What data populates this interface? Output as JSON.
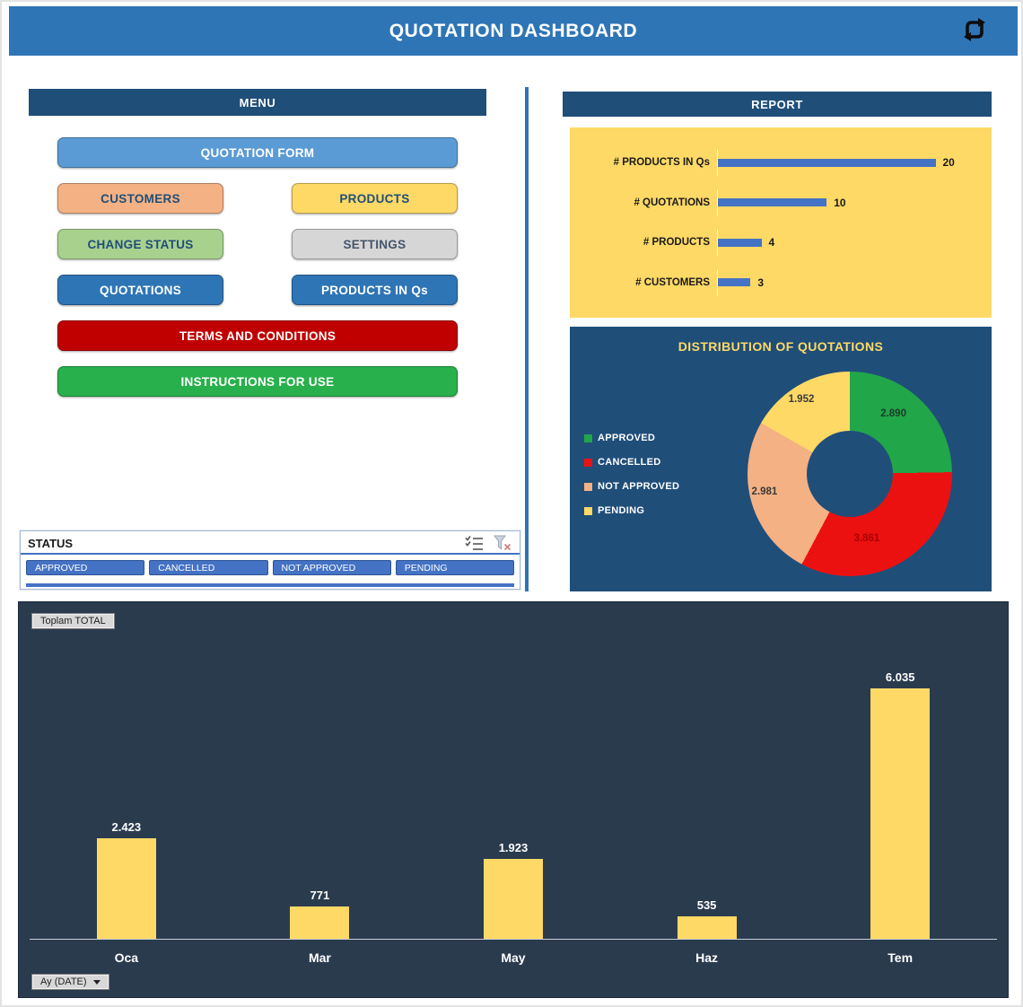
{
  "header": {
    "title": "QUOTATION DASHBOARD"
  },
  "menu": {
    "title": "MENU",
    "buttons": [
      {
        "label": "QUOTATION FORM",
        "bg": "#5B9BD5",
        "fg": "#FFFFFF"
      },
      {
        "label": "CUSTOMERS",
        "bg": "#F4B183",
        "fg": "#1F4E79"
      },
      {
        "label": "PRODUCTS",
        "bg": "#FFD966",
        "fg": "#1F4E79"
      },
      {
        "label": "CHANGE STATUS",
        "bg": "#A9D18E",
        "fg": "#1F4E79"
      },
      {
        "label": "SETTINGS",
        "bg": "#D6D6D6",
        "fg": "#44546A"
      },
      {
        "label": "QUOTATIONS",
        "bg": "#2E75B6",
        "fg": "#FFFFFF"
      },
      {
        "label": "PRODUCTS IN Qs",
        "bg": "#2E75B6",
        "fg": "#FFFFFF"
      },
      {
        "label": "TERMS AND CONDITIONS",
        "bg": "#C00000",
        "fg": "#FFFFFF"
      },
      {
        "label": "INSTRUCTIONS FOR USE",
        "bg": "#28B04C",
        "fg": "#FFFFFF"
      }
    ]
  },
  "status_slicer": {
    "title": "STATUS",
    "items": [
      "APPROVED",
      "CANCELLED",
      "NOT APPROVED",
      "PENDING"
    ],
    "icons": [
      "multi-select",
      "clear-filter"
    ]
  },
  "report": {
    "title": "REPORT"
  },
  "chart_data": [
    {
      "id": "report-counts",
      "type": "bar",
      "orientation": "horizontal",
      "categories": [
        "# PRODUCTS IN Qs",
        "# QUOTATIONS",
        "# PRODUCTS",
        "# CUSTOMERS"
      ],
      "values": [
        20,
        10,
        4,
        3
      ],
      "xlim": [
        0,
        24
      ],
      "bar_color": "#4472C4",
      "background": "#FFD966",
      "grid": false,
      "legend": false
    },
    {
      "id": "distribution-of-quotations",
      "type": "pie",
      "donut": true,
      "title": "DISTRIBUTION OF QUOTATIONS",
      "title_color": "#FFD966",
      "labels": [
        "APPROVED",
        "CANCELLED",
        "NOT APPROVED",
        "PENDING"
      ],
      "values": [
        2890,
        3861,
        2981,
        1952
      ],
      "value_labels": [
        "2.890",
        "3.861",
        "2.981",
        "1.952"
      ],
      "colors": [
        "#21A64A",
        "#EC1111",
        "#F4B183",
        "#FFD966"
      ],
      "value_label_colors": [
        "#1d3b2a",
        "#a80000",
        "#3a3a3a",
        "#3a3a3a"
      ],
      "legend_position": "left",
      "background": "#1F4E79"
    },
    {
      "id": "monthly-total",
      "type": "bar",
      "orientation": "vertical",
      "series_field_button": "Toplam TOTAL",
      "axis_field_button": "Ay (DATE)",
      "categories": [
        "Oca",
        "Mar",
        "May",
        "Haz",
        "Tem"
      ],
      "values": [
        2423,
        771,
        1923,
        535,
        6035
      ],
      "value_labels": [
        "2.423",
        "771",
        "1.923",
        "535",
        "6.035"
      ],
      "ylim": [
        0,
        6500
      ],
      "bar_color": "#FFD966",
      "background": "#2B3B4E",
      "grid": false,
      "legend": false
    }
  ]
}
